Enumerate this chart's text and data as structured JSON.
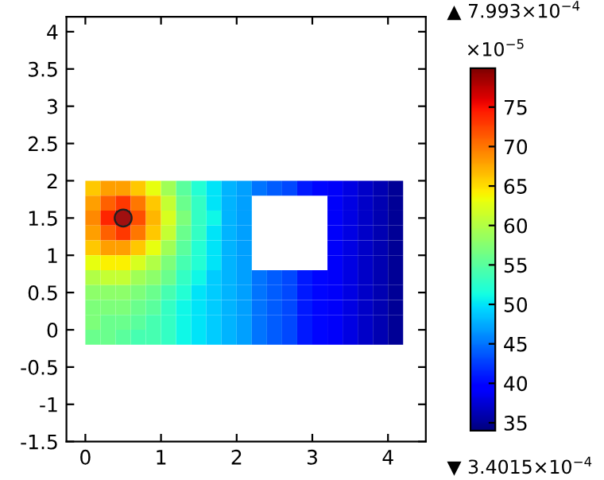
{
  "chart_data": {
    "type": "heatmap",
    "x": [
      0.1,
      0.3,
      0.5,
      0.7,
      0.9,
      1.1,
      1.3,
      1.5,
      1.7,
      1.9,
      2.1,
      2.3,
      2.5,
      2.7,
      2.9,
      3.1,
      3.3,
      3.5,
      3.7,
      3.9,
      4.1
    ],
    "y": [
      1.9,
      1.7,
      1.5,
      1.3,
      1.1,
      0.9,
      0.7,
      0.5,
      0.3,
      0.1,
      -0.1
    ],
    "cells": [
      [
        66,
        68,
        68,
        66,
        63,
        59,
        55,
        52,
        50,
        48,
        47,
        45,
        44,
        43,
        41,
        40,
        39,
        38,
        37,
        36,
        35
      ],
      [
        68,
        71,
        73,
        70,
        66,
        61,
        56,
        53,
        50,
        48,
        47,
        null,
        null,
        null,
        null,
        null,
        39,
        38,
        37,
        36,
        35
      ],
      [
        69,
        74,
        79,
        72,
        67,
        62,
        57,
        53,
        51,
        48,
        47,
        null,
        null,
        null,
        null,
        null,
        39,
        38,
        37,
        36,
        35
      ],
      [
        68,
        71,
        73,
        70,
        66,
        61,
        56,
        53,
        50,
        48,
        47,
        null,
        null,
        null,
        null,
        null,
        39,
        38,
        37,
        36,
        35
      ],
      [
        66,
        68,
        68,
        66,
        63,
        59,
        55,
        52,
        50,
        48,
        47,
        null,
        null,
        null,
        null,
        null,
        39,
        38,
        37,
        36,
        35
      ],
      [
        63,
        64,
        64,
        62,
        60,
        57,
        54,
        52,
        50,
        48,
        47,
        null,
        null,
        null,
        null,
        null,
        39,
        38,
        37,
        36,
        35
      ],
      [
        60,
        61,
        61,
        59,
        58,
        56,
        53,
        51,
        49,
        48,
        47,
        45,
        44,
        43,
        41,
        40,
        39,
        38,
        37,
        36,
        35
      ],
      [
        58,
        58,
        58,
        57,
        56,
        54,
        52,
        50,
        49,
        48,
        47,
        45,
        44,
        43,
        41,
        40,
        39,
        38,
        37,
        36,
        35
      ],
      [
        57,
        57,
        57,
        56,
        55,
        53,
        51,
        50,
        49,
        48,
        47,
        45,
        44,
        43,
        41,
        40,
        39,
        38,
        37,
        36,
        35
      ],
      [
        57,
        56,
        56,
        55,
        54,
        53,
        51,
        50,
        49,
        48,
        47,
        45,
        44,
        43,
        41,
        40,
        39,
        38,
        37,
        36,
        35
      ],
      [
        56,
        56,
        55,
        54,
        54,
        53,
        51,
        50,
        49,
        48,
        47,
        45,
        44,
        43,
        41,
        40,
        39,
        38,
        37,
        36,
        35
      ]
    ],
    "clim": [
      34.015,
      79.93
    ],
    "cticks": [
      35,
      40,
      45,
      50,
      55,
      60,
      65,
      70,
      75
    ],
    "clabel": "×10$^{−5}$",
    "annotations": [
      "▲ 7.993×10$^{−4}$",
      "▼ 3.4015×10$^{−4}$"
    ],
    "series": [
      {
        "type": "scatter",
        "x": [
          0.5
        ],
        "values": [
          1.5
        ],
        "color": "#a01010",
        "marker": "circle"
      }
    ],
    "xlim": [
      -0.25,
      4.5
    ],
    "ylim": [
      -1.5,
      4.2
    ],
    "xticks": [
      0,
      1,
      2,
      3,
      4
    ],
    "yticks": [
      -1.5,
      -1,
      -0.5,
      0,
      0.5,
      1,
      1.5,
      2,
      2.5,
      3,
      3.5,
      4
    ],
    "grid": false
  }
}
